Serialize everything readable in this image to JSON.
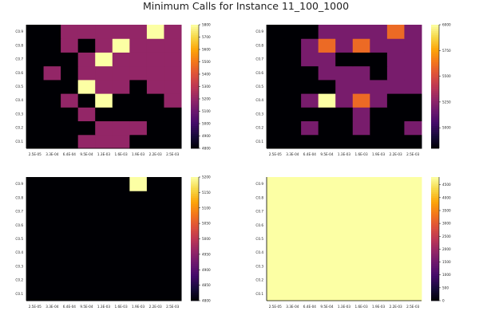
{
  "title": "Minimum Calls for Instance 11_100_1000",
  "chart_data": [
    {
      "type": "heatmap",
      "panel": "top-left",
      "x_categories": [
        "2.5E-05",
        "3.3E-04",
        "6.4E-04",
        "9.5E-04",
        "1.3E-03",
        "1.6E-03",
        "1.9E-03",
        "2.2E-03",
        "2.5E-03"
      ],
      "y_categories": [
        "C0.1",
        "C0.2",
        "C0.3",
        "C0.4",
        "C0.5",
        "C0.6",
        "C0.7",
        "C0.8",
        "C0.9"
      ],
      "z": [
        [
          4800,
          4800,
          4800,
          5200,
          5200,
          5200,
          4800,
          4800,
          4800
        ],
        [
          4800,
          4800,
          4800,
          4800,
          5200,
          5200,
          5200,
          4800,
          4800
        ],
        [
          4800,
          4800,
          4800,
          5200,
          4800,
          4800,
          4800,
          4800,
          4800
        ],
        [
          4800,
          4800,
          5200,
          4800,
          5800,
          4800,
          4800,
          4800,
          5200
        ],
        [
          4800,
          4800,
          4800,
          5800,
          5200,
          5200,
          4800,
          5200,
          5200
        ],
        [
          4800,
          5200,
          4800,
          5200,
          5200,
          5200,
          5200,
          5200,
          5200
        ],
        [
          4800,
          4800,
          4800,
          5200,
          5800,
          5200,
          5200,
          5200,
          5200
        ],
        [
          4800,
          4800,
          5200,
          4800,
          5200,
          5800,
          5200,
          5200,
          5200
        ],
        [
          4800,
          4800,
          5200,
          5200,
          5200,
          5200,
          5200,
          5800,
          5200
        ]
      ],
      "clim": [
        4800,
        5800
      ],
      "colorbar_ticks": [
        4800,
        4900,
        5000,
        5100,
        5200,
        5300,
        5400,
        5500,
        5600,
        5700,
        5800
      ],
      "colormap": "inferno"
    },
    {
      "type": "heatmap",
      "panel": "top-right",
      "x_categories": [
        "2.5E-05",
        "3.3E-04",
        "6.4E-04",
        "9.5E-04",
        "1.3E-03",
        "1.6E-03",
        "1.9E-03",
        "2.2E-03",
        "2.5E-03"
      ],
      "y_categories": [
        "C0.1",
        "C0.2",
        "C0.3",
        "C0.4",
        "C0.5",
        "C0.6",
        "C0.7",
        "C0.8",
        "C0.9"
      ],
      "z": [
        [
          4800,
          4800,
          4800,
          4800,
          4800,
          4800,
          4800,
          4800,
          4800
        ],
        [
          4800,
          4800,
          5200,
          4800,
          4800,
          5200,
          4800,
          4800,
          5200
        ],
        [
          4800,
          4800,
          4800,
          4800,
          4800,
          5200,
          4800,
          4800,
          4800
        ],
        [
          4800,
          4800,
          5200,
          6000,
          5200,
          5600,
          5200,
          4800,
          4800
        ],
        [
          4800,
          4800,
          4800,
          4800,
          5200,
          5200,
          5200,
          5200,
          5200
        ],
        [
          4800,
          4800,
          4800,
          5200,
          5200,
          5200,
          4800,
          5200,
          5200
        ],
        [
          4800,
          4800,
          5200,
          5200,
          4800,
          4800,
          4800,
          5200,
          5200
        ],
        [
          4800,
          4800,
          5200,
          5600,
          5200,
          5600,
          5200,
          5200,
          5200
        ],
        [
          4800,
          4800,
          4800,
          5200,
          5200,
          5200,
          5200,
          5600,
          5200
        ]
      ],
      "clim": [
        4800,
        6000
      ],
      "colorbar_ticks": [
        5000,
        5250,
        5500,
        5750,
        6000
      ],
      "colormap": "inferno"
    },
    {
      "type": "heatmap",
      "panel": "bottom-left",
      "x_categories": [
        "2.5E-05",
        "3.3E-04",
        "6.4E-04",
        "9.5E-04",
        "1.3E-03",
        "1.6E-03",
        "1.9E-03",
        "2.2E-03",
        "2.5E-03"
      ],
      "y_categories": [
        "C0.1",
        "C0.2",
        "C0.3",
        "C0.4",
        "C0.5",
        "C0.6",
        "C0.7",
        "C0.8",
        "C0.9"
      ],
      "z": [
        [
          4800,
          4800,
          4800,
          4800,
          4800,
          4800,
          4800,
          4800,
          4800
        ],
        [
          4800,
          4800,
          4800,
          4800,
          4800,
          4800,
          4800,
          4800,
          4800
        ],
        [
          4800,
          4800,
          4800,
          4800,
          4800,
          4800,
          4800,
          4800,
          4800
        ],
        [
          4800,
          4800,
          4800,
          4800,
          4800,
          4800,
          4800,
          4800,
          4800
        ],
        [
          4800,
          4800,
          4800,
          4800,
          4800,
          4800,
          4800,
          4800,
          4800
        ],
        [
          4800,
          4800,
          4800,
          4800,
          4800,
          4800,
          4800,
          4800,
          4800
        ],
        [
          4800,
          4800,
          4800,
          4800,
          4800,
          4800,
          4800,
          4800,
          4800
        ],
        [
          4800,
          4800,
          4800,
          4800,
          4800,
          4800,
          4800,
          4800,
          4800
        ],
        [
          4800,
          4800,
          4800,
          4800,
          4800,
          4800,
          5200,
          4800,
          4800
        ]
      ],
      "clim": [
        4800,
        5200
      ],
      "colorbar_ticks": [
        4800,
        4850,
        4900,
        4950,
        5000,
        5050,
        5100,
        5150,
        5200
      ],
      "colormap": "inferno"
    },
    {
      "type": "heatmap",
      "panel": "bottom-right",
      "x_categories": [
        "2.5E-05",
        "3.3E-04",
        "6.4E-04",
        "9.5E-04",
        "1.3E-03",
        "1.6E-03",
        "1.9E-03",
        "2.2E-03",
        "2.5E-03"
      ],
      "y_categories": [
        "C0.1",
        "C0.2",
        "C0.3",
        "C0.4",
        "C0.5",
        "C0.6",
        "C0.7",
        "C0.8",
        "C0.9"
      ],
      "z": [
        [
          4800,
          4800,
          4800,
          4800,
          4800,
          4800,
          4800,
          4800,
          4800
        ],
        [
          4800,
          4800,
          4800,
          4800,
          4800,
          4800,
          4800,
          4800,
          4800
        ],
        [
          4800,
          4800,
          4800,
          4800,
          4800,
          4800,
          4800,
          4800,
          4800
        ],
        [
          4800,
          4800,
          4800,
          4800,
          4800,
          4800,
          4800,
          4800,
          4800
        ],
        [
          4800,
          4800,
          4800,
          4800,
          4800,
          4800,
          4800,
          4800,
          4800
        ],
        [
          4800,
          4800,
          4800,
          4800,
          4800,
          4800,
          4800,
          4800,
          4800
        ],
        [
          4800,
          4800,
          4800,
          4800,
          4800,
          4800,
          4800,
          4800,
          4800
        ],
        [
          4800,
          4800,
          4800,
          4800,
          4800,
          4800,
          4800,
          4800,
          4800
        ],
        [
          4800,
          4800,
          4800,
          4800,
          4800,
          4800,
          4800,
          4800,
          4800
        ]
      ],
      "clim": [
        0,
        4800
      ],
      "colorbar_ticks": [
        0,
        500,
        1000,
        1500,
        2000,
        2500,
        3000,
        3500,
        4000,
        4500
      ],
      "colormap": "inferno"
    }
  ]
}
